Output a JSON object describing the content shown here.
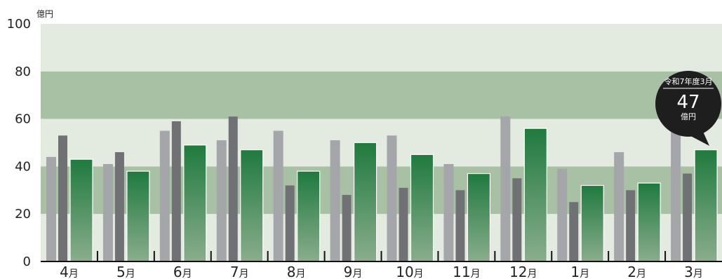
{
  "chart_data": {
    "type": "bar",
    "title": "",
    "xlabel": "",
    "ylabel": "億円",
    "ylim": [
      0,
      100
    ],
    "yticks": [
      0,
      20,
      40,
      60,
      80,
      100
    ],
    "grid": true,
    "legend": "none",
    "categories": [
      {
        "num": "4",
        "unit": "月"
      },
      {
        "num": "5",
        "unit": "月"
      },
      {
        "num": "6",
        "unit": "月"
      },
      {
        "num": "7",
        "unit": "月"
      },
      {
        "num": "8",
        "unit": "月"
      },
      {
        "num": "9",
        "unit": "月"
      },
      {
        "num": "10",
        "unit": "月"
      },
      {
        "num": "11",
        "unit": "月"
      },
      {
        "num": "12",
        "unit": "月"
      },
      {
        "num": "1",
        "unit": "月"
      },
      {
        "num": "2",
        "unit": "月"
      },
      {
        "num": "3",
        "unit": "月"
      }
    ],
    "series": [
      {
        "values": [
          44,
          41,
          55,
          51,
          55,
          51,
          53,
          41,
          61,
          39,
          46,
          55
        ],
        "color": "#a4a6a9"
      },
      {
        "values": [
          53,
          46,
          59,
          61,
          32,
          28,
          31,
          30,
          35,
          25,
          30,
          37
        ],
        "color": "#707174"
      },
      {
        "values": [
          43,
          38,
          49,
          47,
          38,
          50,
          45,
          37,
          56,
          32,
          33,
          47
        ],
        "color_top": "#1f7a3e",
        "color_bottom": "#8aad8c"
      }
    ],
    "bands": [
      {
        "from": 0,
        "to": 20,
        "color": "#e3ebe1"
      },
      {
        "from": 20,
        "to": 40,
        "color": "#a8c1a4"
      },
      {
        "from": 40,
        "to": 60,
        "color": "#e3ebe1"
      },
      {
        "from": 60,
        "to": 80,
        "color": "#a8c1a4"
      },
      {
        "from": 80,
        "to": 100,
        "color": "#e3ebe1"
      }
    ],
    "callout": {
      "period": "令和7年度3月",
      "value": "47",
      "unit": "億円",
      "bg_color": "#1e1e1e"
    }
  }
}
